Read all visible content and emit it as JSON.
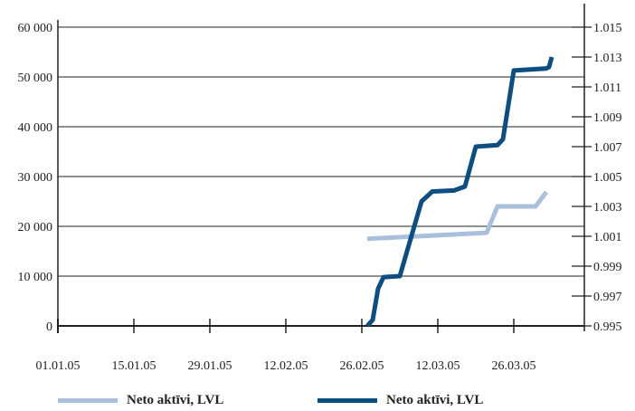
{
  "chart_data": {
    "type": "line",
    "title": "",
    "x": [
      "01.01.05",
      "15.01.05",
      "29.01.05",
      "12.02.05",
      "26.02.05",
      "12.03.05",
      "26.03.05"
    ],
    "y_left": {
      "ticks": [
        "0",
        "10 000",
        "20 000",
        "30 000",
        "40 000",
        "50 000",
        "60 000"
      ],
      "ylim": [
        0,
        60000
      ]
    },
    "y_right": {
      "ticks": [
        "0.995",
        "0.997",
        "0.999",
        "1.001",
        "1.003",
        "1.005",
        "1.007",
        "1.009",
        "1.011",
        "1.013",
        "1.015"
      ],
      "ylim": [
        0.995,
        1.015
      ]
    },
    "grid": "horizontal",
    "legend_position": "bottom",
    "series": [
      {
        "name": "Neto aktīvi, LVL",
        "color": "#a9bfdc",
        "axis": "left",
        "points": [
          [
            "2005-02-27",
            17500
          ],
          [
            "2005-03-21",
            18700
          ],
          [
            "2005-03-23",
            24000
          ],
          [
            "2005-03-30",
            24000
          ],
          [
            "2005-04-01",
            26900
          ]
        ]
      },
      {
        "name": "Neto aktīvi, LVL",
        "color": "#0d4d7f",
        "axis": "left",
        "points": [
          [
            "2005-02-27",
            0
          ],
          [
            "2005-02-28",
            1200
          ],
          [
            "2005-03-01",
            7500
          ],
          [
            "2005-03-02",
            9800
          ],
          [
            "2005-03-05",
            10000
          ],
          [
            "2005-03-09",
            25000
          ],
          [
            "2005-03-11",
            27000
          ],
          [
            "2005-03-15",
            27200
          ],
          [
            "2005-03-17",
            28000
          ],
          [
            "2005-03-19",
            36000
          ],
          [
            "2005-03-23",
            36300
          ],
          [
            "2005-03-24",
            37500
          ],
          [
            "2005-03-26",
            51300
          ],
          [
            "2005-04-01",
            51700
          ],
          [
            "2005-04-01T12:00",
            52000
          ],
          [
            "2005-04-02",
            54000
          ]
        ]
      }
    ]
  },
  "legend": {
    "items": [
      {
        "label": "Neto aktīvi, LVL",
        "color": "#a9bfdc"
      },
      {
        "label": "Neto aktīvi, LVL",
        "color": "#0d4d7f"
      }
    ]
  }
}
